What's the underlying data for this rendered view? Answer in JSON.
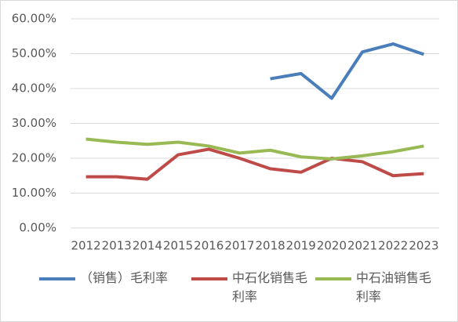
{
  "chart_data": {
    "type": "line",
    "categories": [
      "2012",
      "2013",
      "2014",
      "2015",
      "2016",
      "2017",
      "2018",
      "2019",
      "2020",
      "2021",
      "2022",
      "2023"
    ],
    "series": [
      {
        "name": "（销售）毛利率",
        "color": "#4a7ebb",
        "values": [
          null,
          null,
          null,
          null,
          null,
          null,
          42.8,
          44.3,
          37.2,
          50.5,
          52.8,
          49.8
        ]
      },
      {
        "name": "中石化销售毛利率",
        "color": "#be4b48",
        "values": [
          14.7,
          14.7,
          14.0,
          21.0,
          22.6,
          20.0,
          17.0,
          16.0,
          20.0,
          19.0,
          15.0,
          15.6
        ]
      },
      {
        "name": "中石油销售毛利率",
        "color": "#98b954",
        "values": [
          25.5,
          24.6,
          24.0,
          24.6,
          23.5,
          21.5,
          22.3,
          20.4,
          19.8,
          20.7,
          21.9,
          23.5
        ]
      }
    ],
    "ylim": [
      0,
      60
    ],
    "yticks": [
      {
        "value": 0,
        "label": "0.00%"
      },
      {
        "value": 10,
        "label": "10.00%"
      },
      {
        "value": 20,
        "label": "20.00%"
      },
      {
        "value": 30,
        "label": "30.00%"
      },
      {
        "value": 40,
        "label": "40.00%"
      },
      {
        "value": 50,
        "label": "50.00%"
      },
      {
        "value": 60,
        "label": "60.00%"
      }
    ],
    "grid": true
  }
}
